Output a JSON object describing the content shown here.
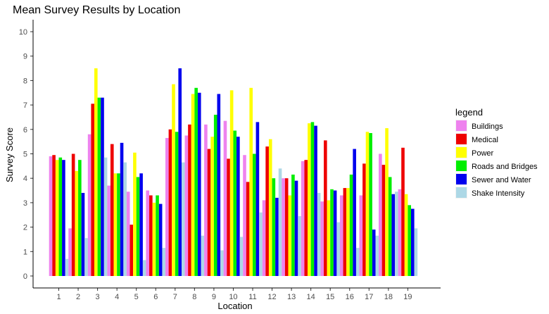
{
  "chart_data": {
    "type": "bar",
    "title": "Mean Survey Results by Location",
    "xlabel": "Location",
    "ylabel": "Survey Score",
    "ylim": [
      0,
      10
    ],
    "yticks": [
      0,
      1,
      2,
      3,
      4,
      5,
      6,
      7,
      8,
      9,
      10
    ],
    "grid": false,
    "legend_title": "legend",
    "legend_position": "right",
    "categories": [
      "1",
      "2",
      "3",
      "4",
      "5",
      "6",
      "7",
      "8",
      "9",
      "10",
      "11",
      "12",
      "13",
      "14",
      "15",
      "16",
      "17",
      "18",
      "19"
    ],
    "series": [
      {
        "name": "Buildings",
        "color": "#ee82ee",
        "values": [
          4.9,
          1.95,
          5.8,
          3.7,
          3.45,
          3.5,
          5.65,
          5.75,
          6.2,
          6.35,
          4.95,
          3.1,
          4.0,
          4.7,
          3.05,
          3.3,
          3.3,
          5.0,
          3.55
        ]
      },
      {
        "name": "Medical",
        "color": "#ee0000",
        "values": [
          4.95,
          5.0,
          7.05,
          5.4,
          2.1,
          3.3,
          6.0,
          6.2,
          5.2,
          4.8,
          3.85,
          5.3,
          4.0,
          4.75,
          5.55,
          3.6,
          4.6,
          4.55,
          5.25
        ]
      },
      {
        "name": "Power",
        "color": "#ffff00",
        "values": [
          4.75,
          4.3,
          8.5,
          4.2,
          5.05,
          3.0,
          7.85,
          7.45,
          5.7,
          7.6,
          7.7,
          5.6,
          3.3,
          6.25,
          3.1,
          3.6,
          5.9,
          6.05,
          3.35
        ]
      },
      {
        "name": "Roads and Bridges",
        "color": "#00ee00",
        "values": [
          4.85,
          4.75,
          7.3,
          4.2,
          4.05,
          3.3,
          5.9,
          7.7,
          6.6,
          5.95,
          5.0,
          4.0,
          4.15,
          6.3,
          3.55,
          4.15,
          5.85,
          4.05,
          2.9
        ]
      },
      {
        "name": "Sewer and Water",
        "color": "#0000ee",
        "values": [
          4.75,
          3.4,
          7.3,
          5.45,
          4.2,
          2.95,
          8.5,
          7.5,
          7.45,
          5.7,
          6.3,
          3.2,
          3.9,
          6.15,
          3.5,
          5.2,
          1.9,
          3.35,
          2.75
        ]
      },
      {
        "name": "Shake Intensity",
        "color": "#add8e6",
        "values": [
          0.7,
          1.55,
          4.85,
          4.65,
          0.65,
          1.15,
          4.65,
          1.65,
          1.05,
          1.6,
          2.6,
          4.4,
          2.45,
          3.4,
          2.2,
          1.15,
          1.65,
          3.45,
          1.95
        ]
      }
    ]
  }
}
